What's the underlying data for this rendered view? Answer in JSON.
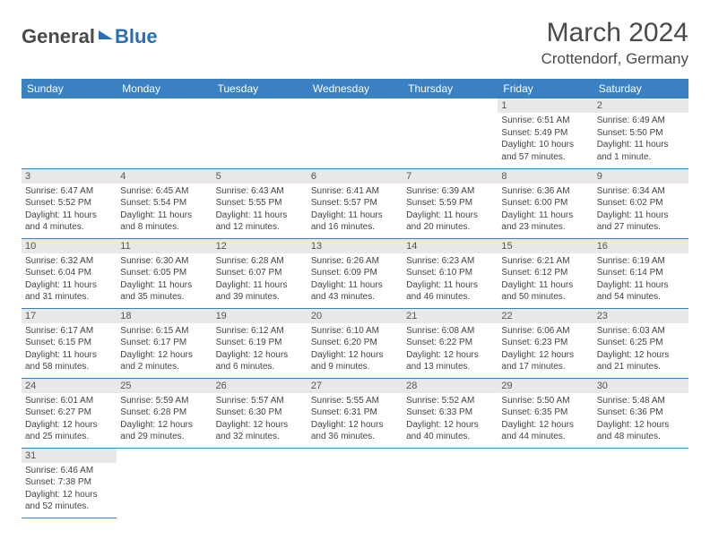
{
  "logo": {
    "part1": "General",
    "part2": "Blue"
  },
  "title": "March 2024",
  "location": "Crottendorf, Germany",
  "colors": {
    "header_bg": "#3a81c4",
    "header_fg": "#ffffff",
    "daynum_bg": "#e8e8e8",
    "border": "#3a81c4",
    "logo_blue": "#2a6db8",
    "text": "#4a4a4a"
  },
  "weekdays": [
    "Sunday",
    "Monday",
    "Tuesday",
    "Wednesday",
    "Thursday",
    "Friday",
    "Saturday"
  ],
  "weeks": [
    [
      null,
      null,
      null,
      null,
      null,
      {
        "n": "1",
        "sr": "Sunrise: 6:51 AM",
        "ss": "Sunset: 5:49 PM",
        "d1": "Daylight: 10 hours",
        "d2": "and 57 minutes."
      },
      {
        "n": "2",
        "sr": "Sunrise: 6:49 AM",
        "ss": "Sunset: 5:50 PM",
        "d1": "Daylight: 11 hours",
        "d2": "and 1 minute."
      }
    ],
    [
      {
        "n": "3",
        "sr": "Sunrise: 6:47 AM",
        "ss": "Sunset: 5:52 PM",
        "d1": "Daylight: 11 hours",
        "d2": "and 4 minutes."
      },
      {
        "n": "4",
        "sr": "Sunrise: 6:45 AM",
        "ss": "Sunset: 5:54 PM",
        "d1": "Daylight: 11 hours",
        "d2": "and 8 minutes."
      },
      {
        "n": "5",
        "sr": "Sunrise: 6:43 AM",
        "ss": "Sunset: 5:55 PM",
        "d1": "Daylight: 11 hours",
        "d2": "and 12 minutes."
      },
      {
        "n": "6",
        "sr": "Sunrise: 6:41 AM",
        "ss": "Sunset: 5:57 PM",
        "d1": "Daylight: 11 hours",
        "d2": "and 16 minutes."
      },
      {
        "n": "7",
        "sr": "Sunrise: 6:39 AM",
        "ss": "Sunset: 5:59 PM",
        "d1": "Daylight: 11 hours",
        "d2": "and 20 minutes."
      },
      {
        "n": "8",
        "sr": "Sunrise: 6:36 AM",
        "ss": "Sunset: 6:00 PM",
        "d1": "Daylight: 11 hours",
        "d2": "and 23 minutes."
      },
      {
        "n": "9",
        "sr": "Sunrise: 6:34 AM",
        "ss": "Sunset: 6:02 PM",
        "d1": "Daylight: 11 hours",
        "d2": "and 27 minutes."
      }
    ],
    [
      {
        "n": "10",
        "sr": "Sunrise: 6:32 AM",
        "ss": "Sunset: 6:04 PM",
        "d1": "Daylight: 11 hours",
        "d2": "and 31 minutes."
      },
      {
        "n": "11",
        "sr": "Sunrise: 6:30 AM",
        "ss": "Sunset: 6:05 PM",
        "d1": "Daylight: 11 hours",
        "d2": "and 35 minutes."
      },
      {
        "n": "12",
        "sr": "Sunrise: 6:28 AM",
        "ss": "Sunset: 6:07 PM",
        "d1": "Daylight: 11 hours",
        "d2": "and 39 minutes."
      },
      {
        "n": "13",
        "sr": "Sunrise: 6:26 AM",
        "ss": "Sunset: 6:09 PM",
        "d1": "Daylight: 11 hours",
        "d2": "and 43 minutes."
      },
      {
        "n": "14",
        "sr": "Sunrise: 6:23 AM",
        "ss": "Sunset: 6:10 PM",
        "d1": "Daylight: 11 hours",
        "d2": "and 46 minutes."
      },
      {
        "n": "15",
        "sr": "Sunrise: 6:21 AM",
        "ss": "Sunset: 6:12 PM",
        "d1": "Daylight: 11 hours",
        "d2": "and 50 minutes."
      },
      {
        "n": "16",
        "sr": "Sunrise: 6:19 AM",
        "ss": "Sunset: 6:14 PM",
        "d1": "Daylight: 11 hours",
        "d2": "and 54 minutes."
      }
    ],
    [
      {
        "n": "17",
        "sr": "Sunrise: 6:17 AM",
        "ss": "Sunset: 6:15 PM",
        "d1": "Daylight: 11 hours",
        "d2": "and 58 minutes."
      },
      {
        "n": "18",
        "sr": "Sunrise: 6:15 AM",
        "ss": "Sunset: 6:17 PM",
        "d1": "Daylight: 12 hours",
        "d2": "and 2 minutes."
      },
      {
        "n": "19",
        "sr": "Sunrise: 6:12 AM",
        "ss": "Sunset: 6:19 PM",
        "d1": "Daylight: 12 hours",
        "d2": "and 6 minutes."
      },
      {
        "n": "20",
        "sr": "Sunrise: 6:10 AM",
        "ss": "Sunset: 6:20 PM",
        "d1": "Daylight: 12 hours",
        "d2": "and 9 minutes."
      },
      {
        "n": "21",
        "sr": "Sunrise: 6:08 AM",
        "ss": "Sunset: 6:22 PM",
        "d1": "Daylight: 12 hours",
        "d2": "and 13 minutes."
      },
      {
        "n": "22",
        "sr": "Sunrise: 6:06 AM",
        "ss": "Sunset: 6:23 PM",
        "d1": "Daylight: 12 hours",
        "d2": "and 17 minutes."
      },
      {
        "n": "23",
        "sr": "Sunrise: 6:03 AM",
        "ss": "Sunset: 6:25 PM",
        "d1": "Daylight: 12 hours",
        "d2": "and 21 minutes."
      }
    ],
    [
      {
        "n": "24",
        "sr": "Sunrise: 6:01 AM",
        "ss": "Sunset: 6:27 PM",
        "d1": "Daylight: 12 hours",
        "d2": "and 25 minutes."
      },
      {
        "n": "25",
        "sr": "Sunrise: 5:59 AM",
        "ss": "Sunset: 6:28 PM",
        "d1": "Daylight: 12 hours",
        "d2": "and 29 minutes."
      },
      {
        "n": "26",
        "sr": "Sunrise: 5:57 AM",
        "ss": "Sunset: 6:30 PM",
        "d1": "Daylight: 12 hours",
        "d2": "and 32 minutes."
      },
      {
        "n": "27",
        "sr": "Sunrise: 5:55 AM",
        "ss": "Sunset: 6:31 PM",
        "d1": "Daylight: 12 hours",
        "d2": "and 36 minutes."
      },
      {
        "n": "28",
        "sr": "Sunrise: 5:52 AM",
        "ss": "Sunset: 6:33 PM",
        "d1": "Daylight: 12 hours",
        "d2": "and 40 minutes."
      },
      {
        "n": "29",
        "sr": "Sunrise: 5:50 AM",
        "ss": "Sunset: 6:35 PM",
        "d1": "Daylight: 12 hours",
        "d2": "and 44 minutes."
      },
      {
        "n": "30",
        "sr": "Sunrise: 5:48 AM",
        "ss": "Sunset: 6:36 PM",
        "d1": "Daylight: 12 hours",
        "d2": "and 48 minutes."
      }
    ],
    [
      {
        "n": "31",
        "sr": "Sunrise: 6:46 AM",
        "ss": "Sunset: 7:38 PM",
        "d1": "Daylight: 12 hours",
        "d2": "and 52 minutes."
      },
      null,
      null,
      null,
      null,
      null,
      null
    ]
  ]
}
